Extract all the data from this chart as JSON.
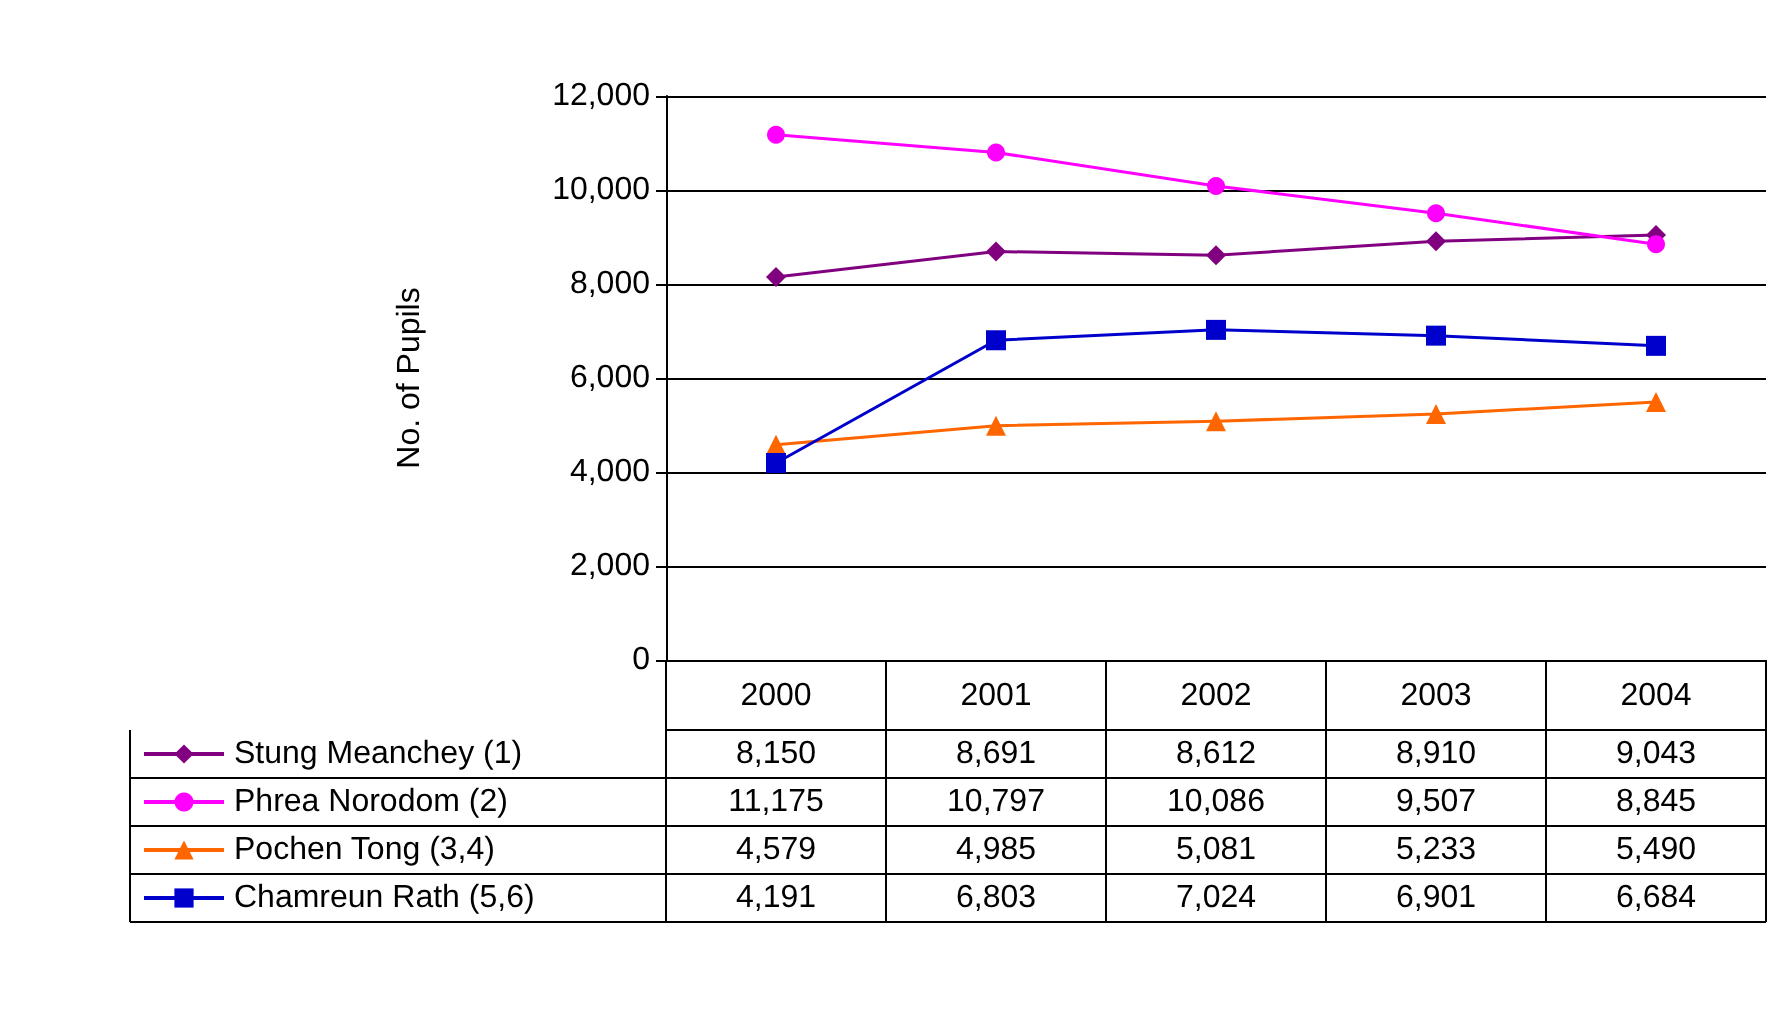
{
  "chart_data": {
    "type": "line",
    "ylabel": "No. of Pupils",
    "categories": [
      "2000",
      "2001",
      "2002",
      "2003",
      "2004"
    ],
    "series": [
      {
        "name": "Stung Meanchey (1)",
        "color": "#800080",
        "marker": "diamond",
        "values": [
          8150,
          8691,
          8612,
          8910,
          9043
        ],
        "value_labels": [
          "8,150",
          "8,691",
          "8,612",
          "8,910",
          "9,043"
        ]
      },
      {
        "name": "Phrea Norodom (2)",
        "color": "#ff00ff",
        "marker": "circle",
        "values": [
          11175,
          10797,
          10086,
          9507,
          8845
        ],
        "value_labels": [
          "11,175",
          "10,797",
          "10,086",
          "9,507",
          "8,845"
        ]
      },
      {
        "name": "Pochen Tong (3,4)",
        "color": "#ff6600",
        "marker": "triangle",
        "values": [
          4579,
          4985,
          5081,
          5233,
          5490
        ],
        "value_labels": [
          "4,579",
          "4,985",
          "5,081",
          "5,233",
          "5,490"
        ]
      },
      {
        "name": "Chamreun Rath (5,6)",
        "color": "#0000cc",
        "marker": "square",
        "values": [
          4191,
          6803,
          7024,
          6901,
          6684
        ],
        "value_labels": [
          "4,191",
          "6,803",
          "7,024",
          "6,901",
          "6,684"
        ]
      }
    ],
    "ylim": [
      0,
      12000
    ],
    "yticks": [
      0,
      {
        "value": 2000,
        "label": "2,000"
      },
      {
        "value": 4000,
        "label": "4,000"
      },
      {
        "value": 6000,
        "label": "6,000"
      },
      {
        "value": 8000,
        "label": "8,000"
      },
      {
        "value": 10000,
        "label": "10,000"
      },
      {
        "value": 12000,
        "label": "12,000"
      }
    ],
    "grid": "y",
    "legend": "bottom left"
  }
}
